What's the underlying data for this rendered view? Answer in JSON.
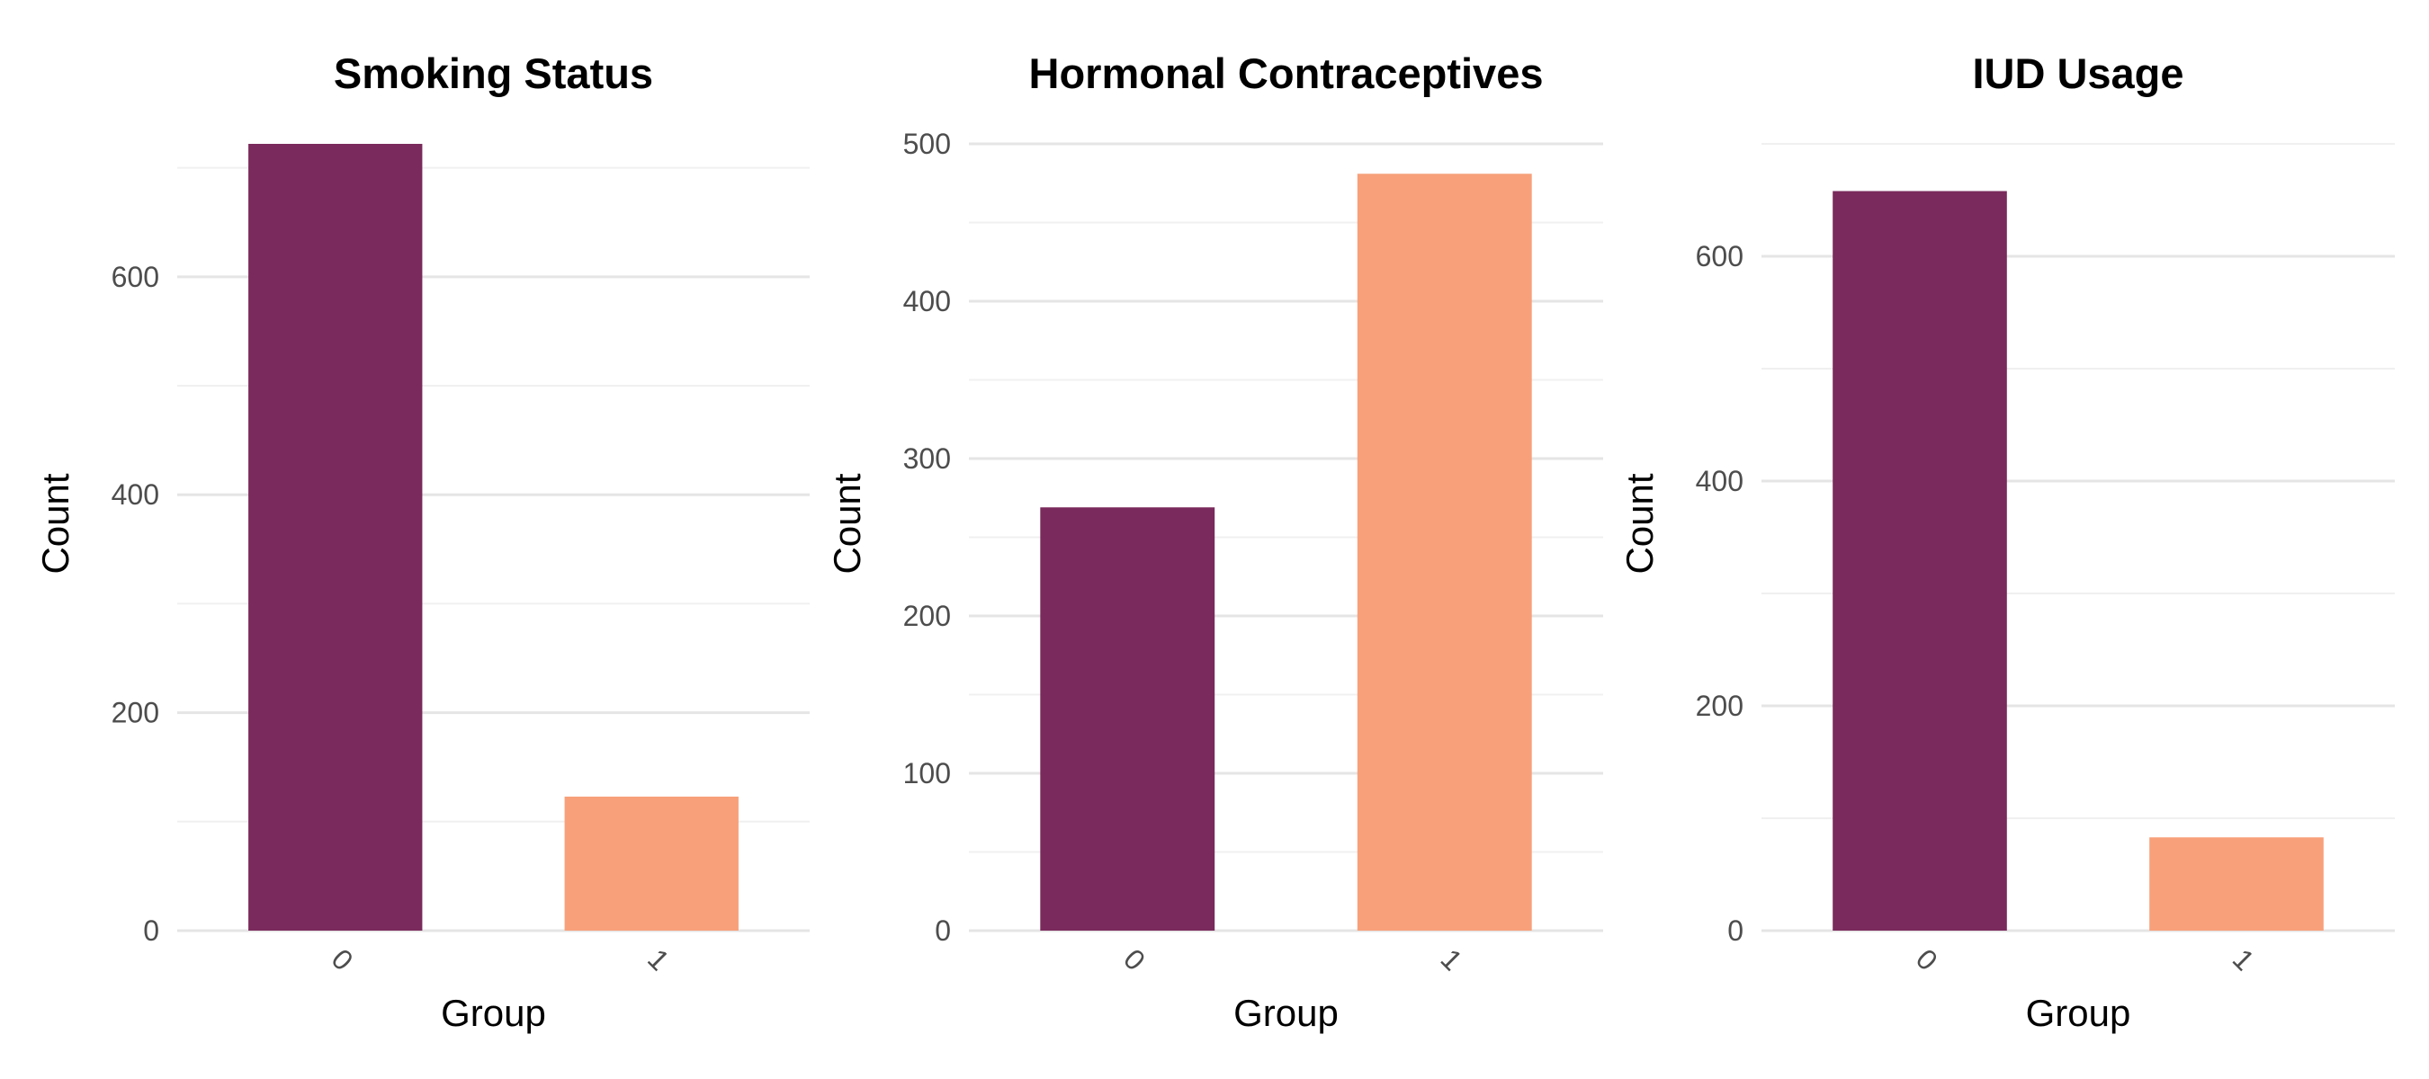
{
  "chart_data": [
    {
      "type": "bar",
      "title": "Smoking Status",
      "xlabel": "Group",
      "ylabel": "Count",
      "categories": [
        "0",
        "1"
      ],
      "values": [
        722,
        123
      ],
      "ylim": [
        0,
        722
      ],
      "yticks": [
        0,
        200,
        400,
        600
      ],
      "colors": [
        "#7a2a5c",
        "#f7a07a"
      ],
      "grid": true
    },
    {
      "type": "bar",
      "title": "Hormonal Contraceptives",
      "xlabel": "Group",
      "ylabel": "Count",
      "categories": [
        "0",
        "1"
      ],
      "values": [
        269,
        481
      ],
      "ylim": [
        0,
        500
      ],
      "yticks": [
        0,
        100,
        200,
        300,
        400,
        500
      ],
      "colors": [
        "#7a2a5c",
        "#f7a07a"
      ],
      "grid": true
    },
    {
      "type": "bar",
      "title": "IUD Usage",
      "xlabel": "Group",
      "ylabel": "Count",
      "categories": [
        "0",
        "1"
      ],
      "values": [
        658,
        83
      ],
      "ylim": [
        0,
        700
      ],
      "yticks": [
        0,
        200,
        400,
        600
      ],
      "colors": [
        "#7a2a5c",
        "#f7a07a"
      ],
      "grid": true
    }
  ]
}
